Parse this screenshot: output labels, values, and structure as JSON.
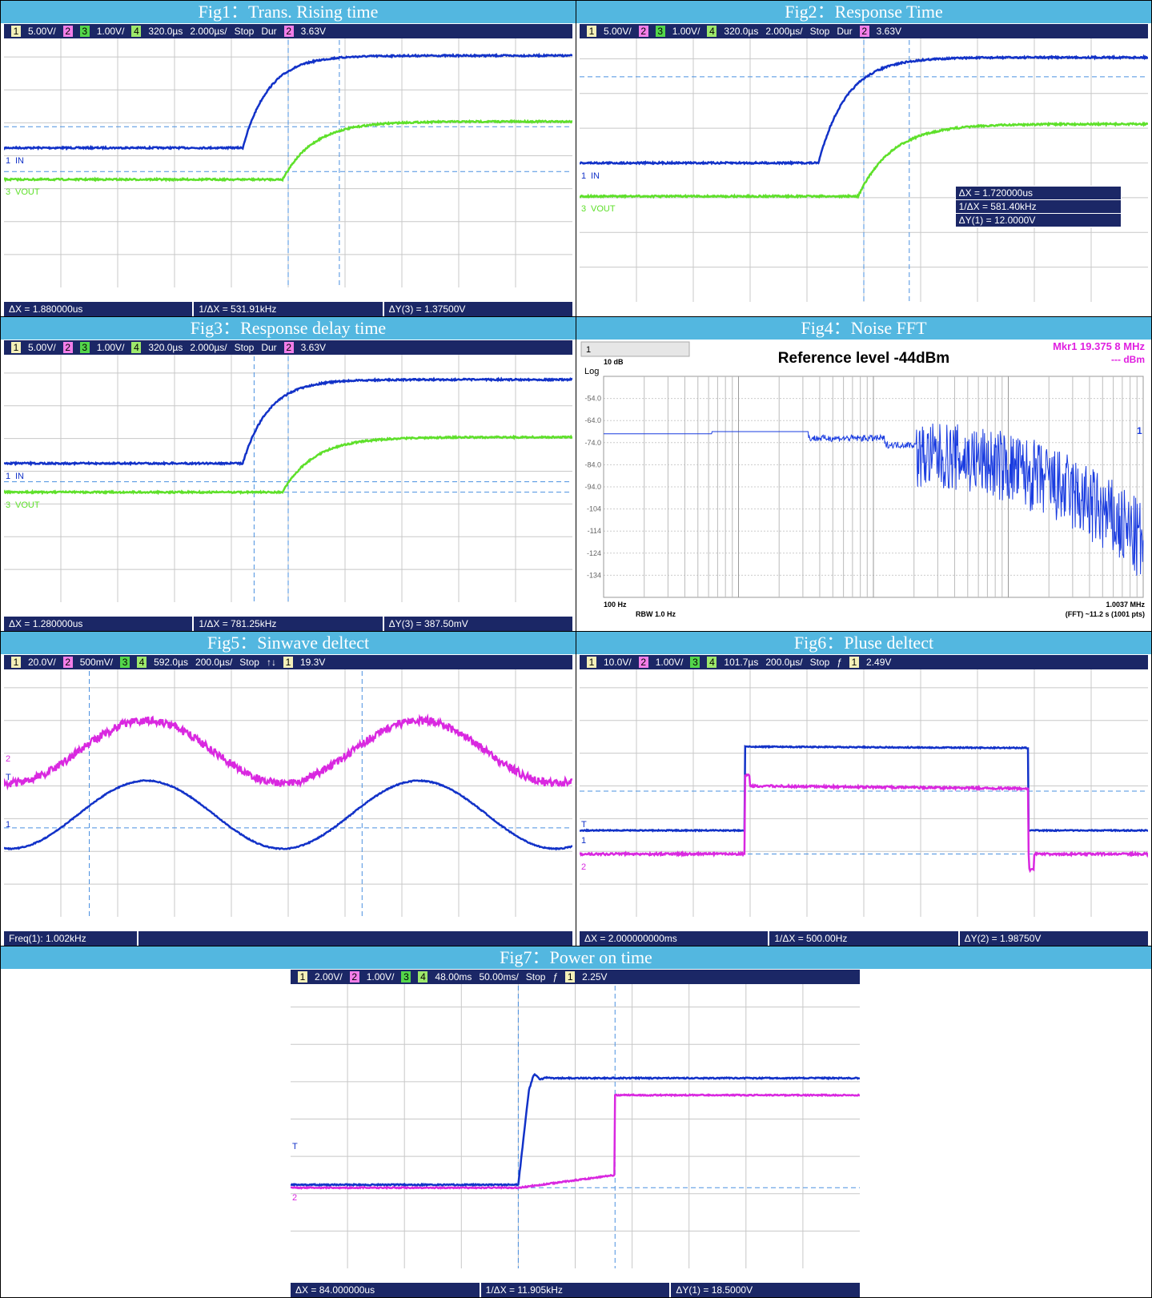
{
  "figures": [
    {
      "title": "Fig1：Trans. Rising time",
      "header": [
        "1",
        "5.00V/",
        "2",
        "3",
        "1.00V/",
        "4",
        "320.0µs",
        "2.000µs/",
        "Stop",
        "Dur",
        "2",
        "3.63V"
      ],
      "labels": [
        "1",
        "IN",
        "3",
        "VOUT"
      ],
      "footer": [
        "ΔX = 1.880000us",
        "1/ΔX = 531.91kHz",
        "ΔY(3) = 1.37500V"
      ]
    },
    {
      "title": "Fig2：Response Time",
      "header": [
        "1",
        "5.00V/",
        "2",
        "3",
        "1.00V/",
        "4",
        "320.0µs",
        "2.000µs/",
        "Stop",
        "Dur",
        "2",
        "3.63V"
      ],
      "labels": [
        "1",
        "IN",
        "3",
        "VOUT"
      ],
      "readout": [
        "ΔX = 1.720000us",
        "1/ΔX = 581.40kHz",
        "ΔY(1) = 12.0000V"
      ]
    },
    {
      "title": "Fig3：Response delay time",
      "header": [
        "1",
        "5.00V/",
        "2",
        "3",
        "1.00V/",
        "4",
        "320.0µs",
        "2.000µs/",
        "Stop",
        "Dur",
        "2",
        "3.63V"
      ],
      "labels": [
        "1",
        "IN",
        "3",
        "VOUT"
      ],
      "footer": [
        "ΔX = 1.280000us",
        "1/ΔX = 781.25kHz",
        "ΔY(3) = 387.50mV"
      ]
    },
    {
      "title": "Fig4：Noise FFT",
      "header": [
        "1"
      ],
      "scale": "10 dB",
      "log": "Log",
      "reference": "Reference level -44dBm",
      "marker": "Mkr1  19.375 8 MHz",
      "marker_unit": "--- dBm",
      "trace_label": "1",
      "yticks": [
        "-54.0",
        "-64.0",
        "-74.0",
        "-84.0",
        "-94.0",
        "-104",
        "-114",
        "-124",
        "-134"
      ],
      "x_start": "100 Hz",
      "x_end": "1.0037 MHz",
      "rbw": "RBW 1.0 Hz",
      "sweep": "(FFT) ~11.2 s (1001 pts)"
    },
    {
      "title": "Fig5：Sinwave deltect",
      "header": [
        "1",
        "20.0V/",
        "2",
        "500mV/",
        "3",
        "4",
        "592.0µs",
        "200.0µs/",
        "Stop",
        "↑↓",
        "1",
        "19.3V"
      ],
      "labels": [
        "2",
        "T",
        "1"
      ],
      "footer": [
        "Freq(1): 1.002kHz"
      ]
    },
    {
      "title": "Fig6：Pluse deltect",
      "header": [
        "1",
        "10.0V/",
        "2",
        "1.00V/",
        "3",
        "4",
        "101.7µs",
        "200.0µs/",
        "Stop",
        "ƒ",
        "1",
        "2.49V"
      ],
      "labels": [
        "T",
        "1",
        "2"
      ],
      "footer": [
        "ΔX = 2.000000000ms",
        "1/ΔX = 500.00Hz",
        "ΔY(2) = 1.98750V"
      ]
    },
    {
      "title": "Fig7：Power on time",
      "header": [
        "1",
        "2.00V/",
        "2",
        "1.00V/",
        "3",
        "4",
        "48.00ms",
        "50.00ms/",
        "Stop",
        "ƒ",
        "1",
        "2.25V"
      ],
      "labels": [
        "T",
        "2"
      ],
      "footer": [
        "ΔX = 84.000000us",
        "1/ΔX = 11.905kHz",
        "ΔY(1) = 18.5000V"
      ]
    }
  ]
}
